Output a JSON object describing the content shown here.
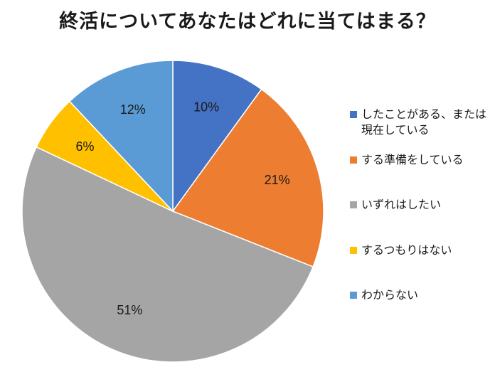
{
  "chart_data": {
    "type": "pie",
    "title": "終活についてあなたはどれに当てはまる？",
    "slices": [
      {
        "name": "したことがある、または現在している",
        "value": 10,
        "label": "10%",
        "color": "#4472C4"
      },
      {
        "name": "する準備をしている",
        "value": 21,
        "label": "21%",
        "color": "#ED7D31"
      },
      {
        "name": "いずれはしたい",
        "value": 51,
        "label": "51%",
        "color": "#A5A5A5"
      },
      {
        "name": "するつもりはない",
        "value": 6,
        "label": "6%",
        "color": "#FFC000"
      },
      {
        "name": "わからない",
        "value": 12,
        "label": "12%",
        "color": "#5B9BD5"
      }
    ],
    "legend_position": "right"
  }
}
